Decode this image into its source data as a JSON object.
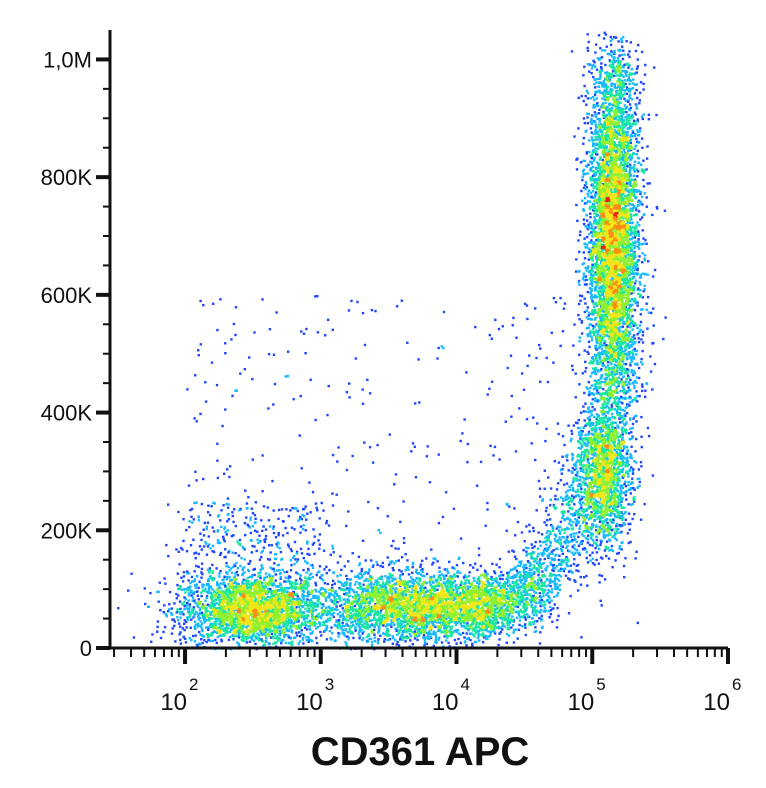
{
  "chart_data": {
    "type": "scatter",
    "title": "",
    "xlabel": "CD361 APC",
    "ylabel": "",
    "x_scale": "log",
    "xlim": [
      28,
      1000000
    ],
    "ylim": [
      0,
      1050000
    ],
    "grid": false,
    "legend": "none",
    "density_colormap": [
      "#1a1aa8",
      "#1e46ff",
      "#17b8ff",
      "#19e6a0",
      "#8ff030",
      "#f2e61a",
      "#ff8c14",
      "#e81c14"
    ],
    "yticks": [
      {
        "value": 0,
        "label": "0"
      },
      {
        "value": 200000,
        "label": "200K"
      },
      {
        "value": 400000,
        "label": "400K"
      },
      {
        "value": 600000,
        "label": "600K"
      },
      {
        "value": 800000,
        "label": "800K"
      },
      {
        "value": 1000000,
        "label": "1,0M"
      }
    ],
    "xticks": [
      {
        "value": 100,
        "base": "10",
        "exp": "2"
      },
      {
        "value": 1000,
        "base": "10",
        "exp": "3"
      },
      {
        "value": 10000,
        "base": "10",
        "exp": "4"
      },
      {
        "value": 100000,
        "base": "10",
        "exp": "5"
      },
      {
        "value": 1000000,
        "base": "10",
        "exp": "6"
      }
    ],
    "populations": [
      {
        "name": "",
        "x_center": 300,
        "y_center": 65000,
        "x_spread_log10": 0.26,
        "y_spread": 30000,
        "weight": 0.18
      },
      {
        "name": "",
        "x_center": 5000,
        "y_center": 72000,
        "x_spread_log10": 0.38,
        "y_spread": 30000,
        "weight": 0.22
      },
      {
        "name": "",
        "x_center": 140000,
        "y_center": 700000,
        "x_spread_log10": 0.09,
        "y_spread": 150000,
        "weight": 0.32
      },
      {
        "name": "",
        "x_center": 120000,
        "y_center": 290000,
        "x_spread_log10": 0.1,
        "y_spread": 60000,
        "weight": 0.1
      }
    ]
  }
}
